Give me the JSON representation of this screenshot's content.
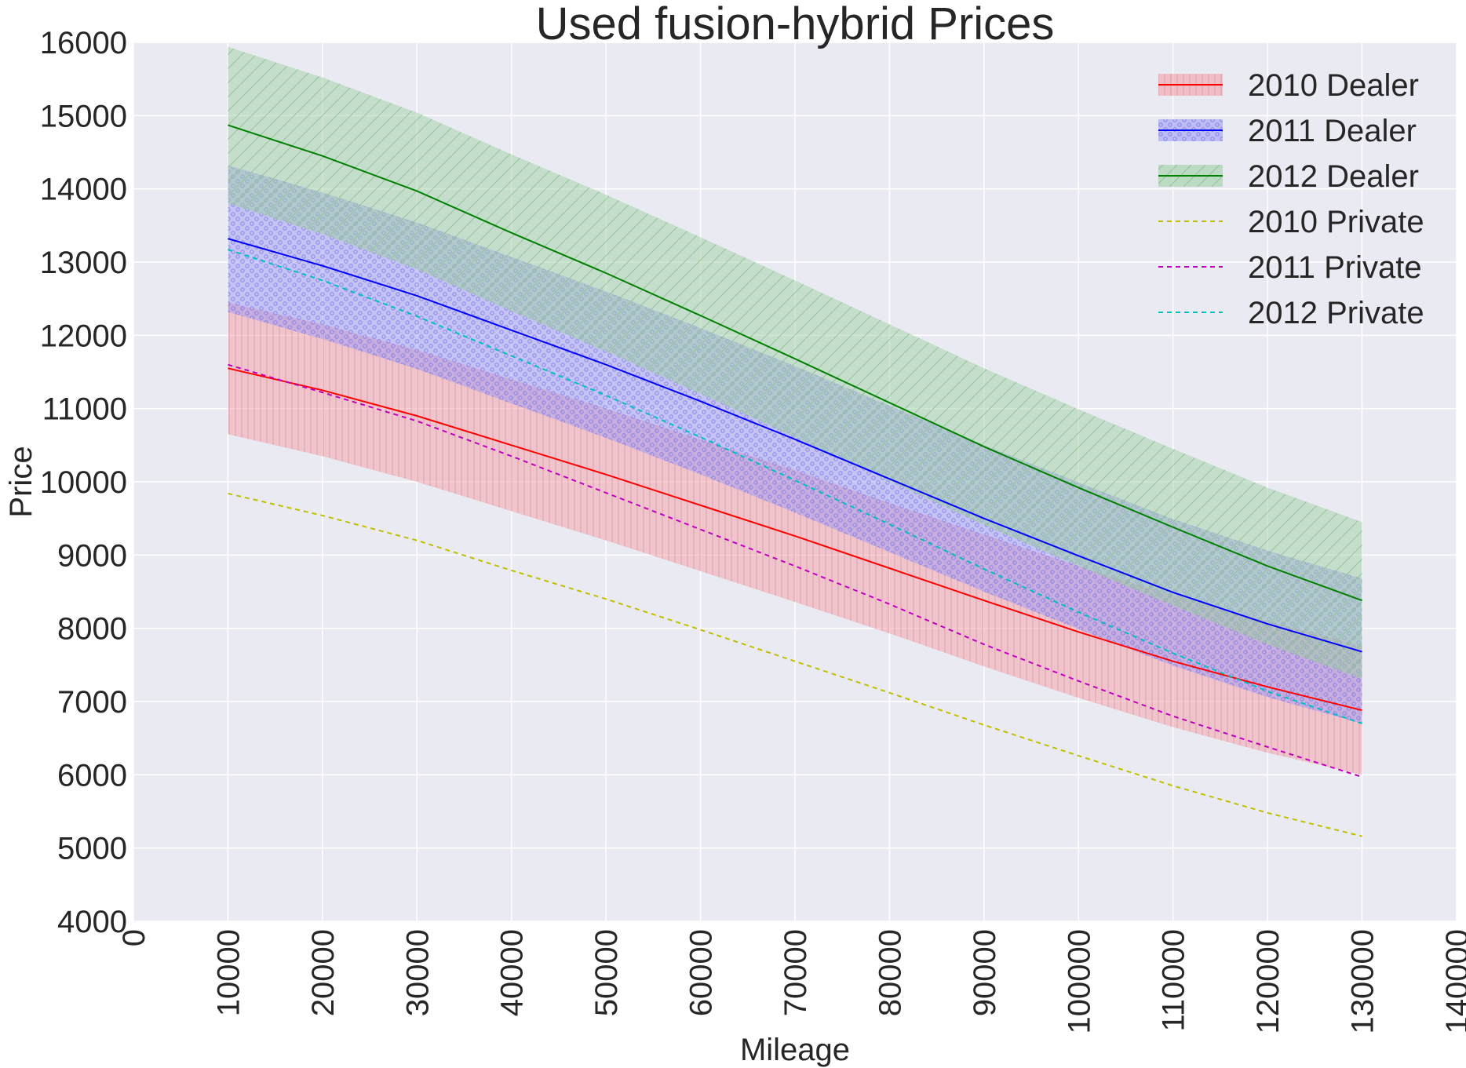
{
  "chart_data": {
    "type": "line",
    "title": "Used fusion-hybrid Prices",
    "xlabel": "Mileage",
    "ylabel": "Price",
    "xlim": [
      0,
      140000
    ],
    "ylim": [
      4000,
      16000
    ],
    "xticks": [
      0,
      10000,
      20000,
      30000,
      40000,
      50000,
      60000,
      70000,
      80000,
      90000,
      100000,
      110000,
      120000,
      130000,
      140000
    ],
    "yticks": [
      4000,
      5000,
      6000,
      7000,
      8000,
      9000,
      10000,
      11000,
      12000,
      13000,
      14000,
      15000,
      16000
    ],
    "grid": true,
    "legend_position": "top-right",
    "x": [
      10000,
      20000,
      30000,
      40000,
      50000,
      60000,
      70000,
      80000,
      90000,
      100000,
      110000,
      120000,
      130000
    ],
    "series": [
      {
        "name": "2010 Dealer",
        "style": "solid",
        "color": "#ff0000",
        "fill": "#f4a0a8",
        "hatch": "vertical",
        "values": [
          11550,
          11250,
          10900,
          10500,
          10100,
          9680,
          9260,
          8820,
          8380,
          7950,
          7550,
          7200,
          6880
        ],
        "band_low": [
          10650,
          10350,
          10000,
          9600,
          9200,
          8780,
          8360,
          7930,
          7480,
          7050,
          6650,
          6300,
          6000
        ],
        "band_high": [
          12450,
          12150,
          11800,
          11400,
          11000,
          10580,
          10160,
          9710,
          9280,
          8850,
          8450,
          8100,
          7760
        ]
      },
      {
        "name": "2011 Dealer",
        "style": "solid",
        "color": "#0000ff",
        "fill": "#9f9cf5",
        "hatch": "dots",
        "values": [
          13320,
          12950,
          12540,
          12070,
          11600,
          11100,
          10580,
          10040,
          9500,
          8990,
          8490,
          8060,
          7680
        ],
        "band_low": [
          12320,
          11950,
          11540,
          11070,
          10600,
          10100,
          9580,
          9040,
          8500,
          7990,
          7490,
          7060,
          6700
        ],
        "band_high": [
          14320,
          13950,
          13540,
          13070,
          12600,
          12100,
          11580,
          11040,
          10500,
          9990,
          9490,
          9060,
          8680
        ]
      },
      {
        "name": "2012 Dealer",
        "style": "solid",
        "color": "#008000",
        "fill": "#9fcfa4",
        "hatch": "diagonal",
        "values": [
          14870,
          14450,
          13970,
          13400,
          12850,
          12270,
          11680,
          11080,
          10480,
          9920,
          9380,
          8850,
          8380
        ],
        "band_low": [
          13800,
          13380,
          12900,
          12330,
          11780,
          11200,
          10610,
          10010,
          9410,
          8850,
          8310,
          7780,
          7310
        ],
        "band_high": [
          15940,
          15520,
          15040,
          14470,
          13920,
          13340,
          12750,
          12150,
          11550,
          10990,
          10450,
          9920,
          9450
        ]
      },
      {
        "name": "2010 Private",
        "style": "dashed",
        "color": "#bfbf00",
        "values": [
          9840,
          9540,
          9200,
          8790,
          8400,
          7980,
          7550,
          7120,
          6680,
          6260,
          5850,
          5480,
          5160
        ]
      },
      {
        "name": "2011 Private",
        "style": "dashed",
        "color": "#bf00bf",
        "values": [
          11600,
          11220,
          10830,
          10350,
          9850,
          9350,
          8850,
          8330,
          7780,
          7280,
          6800,
          6380,
          5970
        ]
      },
      {
        "name": "2012 Private",
        "style": "dashed",
        "color": "#00bfbf",
        "values": [
          13170,
          12750,
          12260,
          11720,
          11180,
          10610,
          10020,
          9420,
          8810,
          8220,
          7660,
          7140,
          6700
        ]
      }
    ]
  }
}
